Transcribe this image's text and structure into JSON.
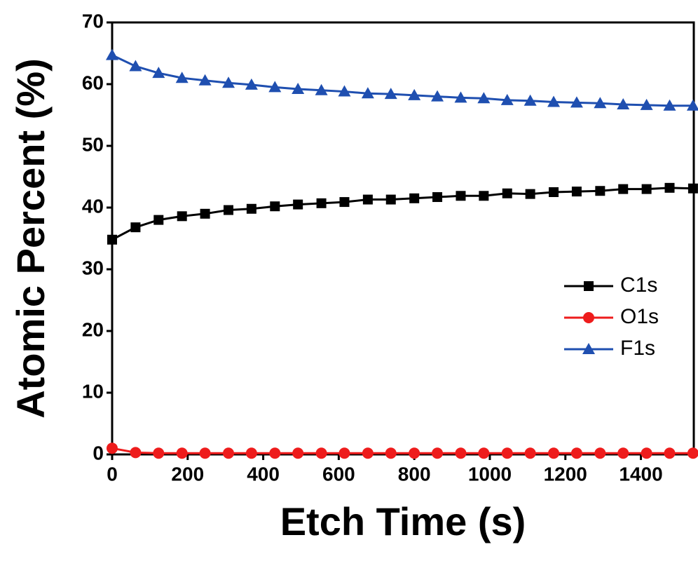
{
  "chart_data": {
    "type": "line",
    "xlabel": "Etch Time (s)",
    "ylabel": "Atomic Percent (%)",
    "x": [
      0,
      62,
      123,
      185,
      246,
      308,
      369,
      431,
      492,
      554,
      615,
      677,
      738,
      800,
      861,
      923,
      984,
      1046,
      1107,
      1169,
      1230,
      1292,
      1353,
      1415,
      1476,
      1538
    ],
    "series": [
      {
        "name": "C1s",
        "color": "#000000",
        "marker": "square",
        "values": [
          34.8,
          36.8,
          38.0,
          38.6,
          39.0,
          39.6,
          39.8,
          40.2,
          40.5,
          40.7,
          40.9,
          41.3,
          41.3,
          41.5,
          41.7,
          41.9,
          41.9,
          42.3,
          42.2,
          42.5,
          42.6,
          42.7,
          43.0,
          43.0,
          43.2,
          43.1
        ]
      },
      {
        "name": "O1s",
        "color": "#ee1c1c",
        "marker": "circle",
        "values": [
          1.0,
          0.3,
          0.2,
          0.2,
          0.2,
          0.2,
          0.2,
          0.2,
          0.2,
          0.2,
          0.2,
          0.2,
          0.2,
          0.2,
          0.2,
          0.2,
          0.2,
          0.2,
          0.2,
          0.2,
          0.2,
          0.2,
          0.2,
          0.2,
          0.2,
          0.2
        ]
      },
      {
        "name": "F1s",
        "color": "#1f4fb0",
        "marker": "triangle",
        "values": [
          64.7,
          62.9,
          61.8,
          61.0,
          60.6,
          60.2,
          59.9,
          59.5,
          59.2,
          59.0,
          58.8,
          58.5,
          58.4,
          58.2,
          58.0,
          57.8,
          57.7,
          57.4,
          57.3,
          57.1,
          57.0,
          56.9,
          56.7,
          56.6,
          56.5,
          56.5
        ]
      }
    ],
    "xlim": [
      0,
      1540
    ],
    "xticks": [
      0,
      200,
      400,
      600,
      800,
      1000,
      1200,
      1400
    ],
    "ylim": [
      0,
      70
    ],
    "yticks": [
      0,
      10,
      20,
      30,
      40,
      50,
      60,
      70
    ],
    "legend": "right"
  }
}
